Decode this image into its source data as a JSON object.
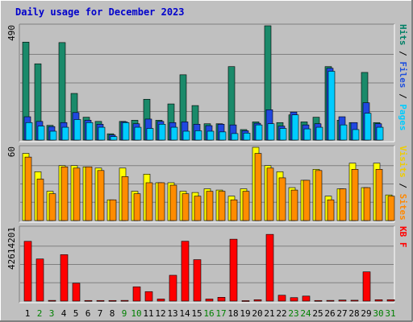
{
  "chart_data": {
    "type": "bar",
    "title": "Daily usage for December 2023",
    "x": [
      "1",
      "2",
      "3",
      "4",
      "5",
      "6",
      "7",
      "8",
      "9",
      "10",
      "11",
      "12",
      "13",
      "14",
      "15",
      "16",
      "17",
      "18",
      "19",
      "20",
      "21",
      "22",
      "23",
      "24",
      "25",
      "26",
      "27",
      "28",
      "29",
      "30",
      "31"
    ],
    "weekend_days": [
      "2",
      "3",
      "9",
      "10",
      "16",
      "17",
      "23",
      "24",
      "30",
      "31"
    ],
    "panels": [
      {
        "axis_max": "490",
        "label_parts": [
          {
            "text": "Pages",
            "color": "#00ccff"
          },
          {
            "text": " / ",
            "color": "#000000"
          },
          {
            "text": "Files",
            "color": "#2050dd"
          },
          {
            "text": " / ",
            "color": "#000000"
          },
          {
            "text": "Hits",
            "color": "#008066"
          }
        ],
        "max": 490,
        "series": [
          {
            "name": "Hits",
            "color": "#1a8a6a",
            "values": [
              420,
              327,
              63,
              418,
              200,
              98,
              80,
              27,
              80,
              85,
              175,
              85,
              155,
              280,
              148,
              70,
              70,
              315,
              45,
              78,
              490,
              75,
              108,
              78,
              98,
              315,
              85,
              75,
              290,
              75,
              0
            ]
          },
          {
            "name": "Files",
            "color": "#2048e0",
            "values": [
              100,
              80,
              58,
              75,
              118,
              85,
              68,
              22,
              78,
              70,
              90,
              80,
              75,
              78,
              68,
              62,
              68,
              65,
              40,
              72,
              130,
              60,
              120,
              65,
              70,
              308,
              100,
              75,
              160,
              70,
              0
            ]
          },
          {
            "name": "Pages",
            "color": "#00ccff",
            "values": [
              75,
              60,
              38,
              55,
              88,
              75,
              55,
              15,
              75,
              55,
              50,
              68,
              55,
              38,
              40,
              38,
              35,
              28,
              30,
              65,
              70,
              50,
              108,
              48,
              55,
              295,
              65,
              45,
              115,
              55,
              0
            ]
          }
        ]
      },
      {
        "axis_max": "60",
        "label_parts": [
          {
            "text": "Sites",
            "color": "#ff8800"
          },
          {
            "text": " / ",
            "color": "#000000"
          },
          {
            "text": "Visits",
            "color": "#eecc00"
          }
        ],
        "max": 60,
        "series": [
          {
            "name": "Visits",
            "color": "#ffff00",
            "values": [
              55,
              40,
              24,
              45,
              45,
              44,
              43,
              17,
              43,
              24,
              38,
              31,
              31,
              24,
              23,
              26,
              25,
              20,
              26,
              60,
              45,
              40,
              27,
              33,
              42,
              20,
              26,
              47,
              27,
              47,
              21
            ]
          },
          {
            "name": "Sites",
            "color": "#ff8c00",
            "values": [
              52,
              34,
              22,
              44,
              43,
              44,
              41,
              17,
              36,
              22,
              31,
              31,
              29,
              22,
              20,
              24,
              24,
              17,
              24,
              55,
              43,
              35,
              25,
              33,
              41,
              17,
              26,
              42,
              27,
              42,
              20
            ]
          }
        ]
      },
      {
        "axis_max": "42614201",
        "label_parts": [
          {
            "text": "KB F",
            "color": "#ff0000"
          }
        ],
        "max": 42614201,
        "series": [
          {
            "name": "KB F",
            "color": "#ff0000",
            "values": [
              34750000,
              24500000,
              400000,
              27000000,
              10400000,
              350000,
              350000,
              350000,
              400000,
              8300000,
              5500000,
              1200000,
              15000000,
              34800000,
              24100000,
              1200000,
              2200000,
              36000000,
              250000,
              800000,
              38800000,
              3400000,
              2000000,
              2900000,
              350000,
              400000,
              600000,
              500000,
              17000000,
              800000,
              800000
            ]
          }
        ]
      }
    ]
  }
}
